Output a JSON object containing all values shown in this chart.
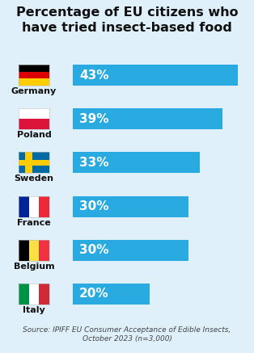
{
  "title": "Percentage of EU citizens who\nhave tried insect-based food",
  "countries": [
    "Germany",
    "Poland",
    "Sweden",
    "France",
    "Belgium",
    "Italy"
  ],
  "values": [
    43,
    39,
    33,
    30,
    30,
    20
  ],
  "bar_color": "#29ABE2",
  "background_color": "#DFF0FA",
  "title_fontsize": 11.5,
  "bar_label_fontsize": 11,
  "country_fontsize": 8,
  "source_text": "Source: IPIFF EU Consumer Acceptance of Edible Insects,\nOctober 2023 (n=3,000)",
  "max_value": 45,
  "flag_configs": {
    "Germany": {
      "type": "h_stripes",
      "colors": [
        "#000000",
        "#DD0000",
        "#FFCE00"
      ]
    },
    "Poland": {
      "type": "h_stripes",
      "colors": [
        "#FFFFFF",
        "#DC143C"
      ]
    },
    "Sweden": {
      "type": "cross",
      "bg": "#006AA7",
      "cross_color": "#FECC02"
    },
    "France": {
      "type": "v_stripes",
      "colors": [
        "#002395",
        "#FFFFFF",
        "#ED2939"
      ]
    },
    "Belgium": {
      "type": "v_stripes",
      "colors": [
        "#000000",
        "#FAE042",
        "#EF3340"
      ]
    },
    "Italy": {
      "type": "v_stripes",
      "colors": [
        "#009246",
        "#FFFFFF",
        "#CE2B37"
      ]
    }
  }
}
